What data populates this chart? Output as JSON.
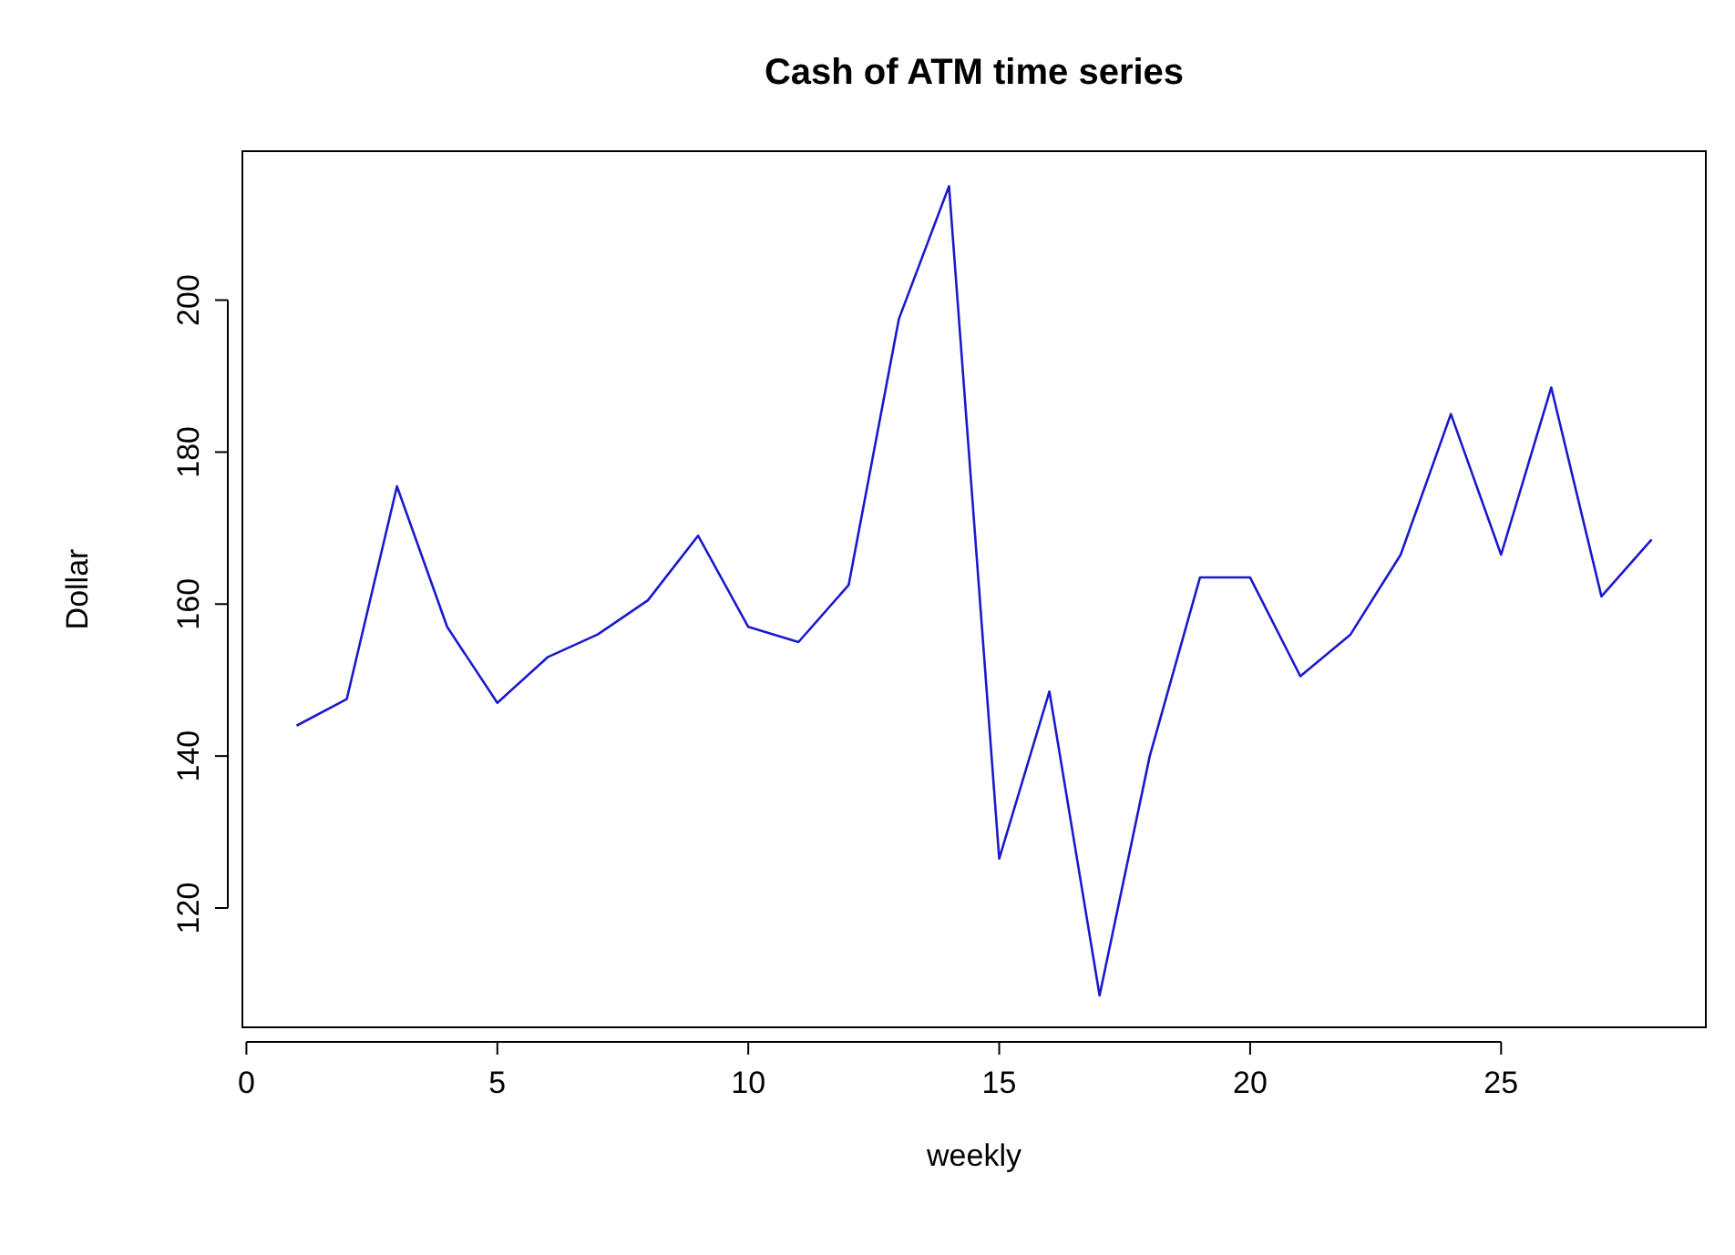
{
  "chart_data": {
    "type": "line",
    "title": "Cash of ATM time series",
    "xlabel": "weekly",
    "ylabel": "Dollar",
    "x": [
      1,
      2,
      3,
      4,
      5,
      6,
      7,
      8,
      9,
      10,
      11,
      12,
      13,
      14,
      15,
      16,
      17,
      18,
      19,
      20,
      21,
      22,
      23,
      24,
      25,
      26,
      27,
      28
    ],
    "series": [
      {
        "color": "#1a1acc",
        "values": [
          144,
          147.5,
          175.5,
          157,
          147,
          153,
          156,
          160.5,
          169,
          157,
          155,
          162.5,
          197.5,
          215,
          126.5,
          148.5,
          108.5,
          140,
          163.5,
          163.5,
          150.5,
          156,
          166.5,
          185,
          166.5,
          188.5,
          161,
          168.5
        ]
      }
    ],
    "xlim": [
      -0.08,
      29.08
    ],
    "xticks": [
      0,
      5,
      10,
      15,
      20,
      25
    ],
    "ylim": [
      104.3,
      219.6
    ],
    "yticks": [
      120,
      140,
      160,
      180,
      200
    ],
    "marker": "none",
    "line_style": "solid"
  }
}
